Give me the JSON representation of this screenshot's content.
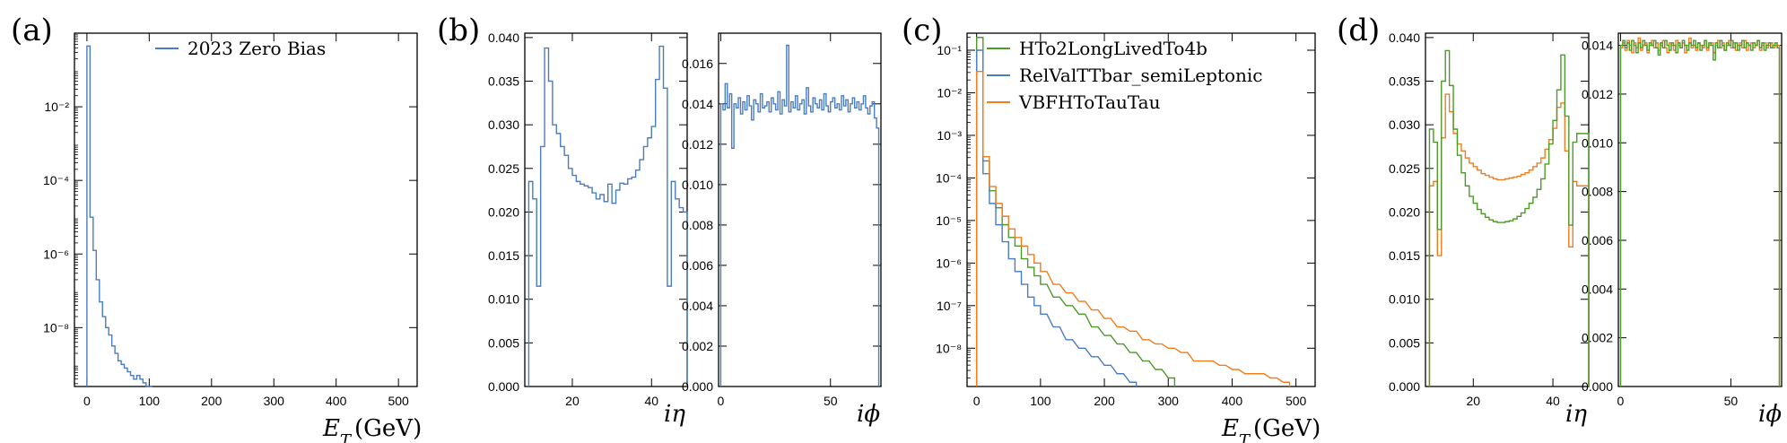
{
  "panel_labels": [
    "(a)",
    "(b)",
    "(c)",
    "(d)"
  ],
  "colors": {
    "blue": "#4a7cc0",
    "green": "#4c9a2a",
    "orange": "#f07d1e",
    "red": "#e8412b",
    "axis": "#000000"
  },
  "chart_data": [
    {
      "id": "a",
      "type": "line",
      "step": true,
      "xlabel": "E_T (GeV)",
      "xlim": [
        -20,
        530
      ],
      "xticks": [
        0,
        100,
        200,
        300,
        400,
        500
      ],
      "ylog": true,
      "ylim_log10": [
        -9.6,
        0
      ],
      "yticks": [
        {
          "v": -2,
          "t": "10⁻²"
        },
        {
          "v": -4,
          "t": "10⁻⁴"
        },
        {
          "v": -6,
          "t": "10⁻⁶"
        },
        {
          "v": -8,
          "t": "10⁻⁸"
        }
      ],
      "legend": [
        "2023 Zero Bias"
      ],
      "series": [
        {
          "name": "2023 Zero Bias",
          "color": "#4a7cc0",
          "x": [
            0,
            5,
            10,
            15,
            20,
            25,
            30,
            35,
            40,
            45,
            50,
            55,
            60,
            65,
            70,
            75,
            80,
            85,
            90,
            95,
            100
          ],
          "y_log10": [
            -0.35,
            -5.0,
            -5.9,
            -6.7,
            -7.3,
            -7.7,
            -8.0,
            -8.2,
            -8.5,
            -8.7,
            -8.9,
            -9.0,
            -9.1,
            -9.2,
            -9.3,
            -9.4,
            -9.3,
            -9.4,
            -9.5,
            -9.6,
            -9.6
          ]
        }
      ]
    },
    {
      "id": "b1",
      "type": "line",
      "step": true,
      "xlabel": "iη",
      "xlim": [
        8,
        49
      ],
      "xticks": [
        20,
        40
      ],
      "ylim": [
        0,
        0.0405
      ],
      "yticks": [
        0.0,
        0.005,
        0.01,
        0.015,
        0.02,
        0.025,
        0.03,
        0.035,
        0.04
      ],
      "ytick_format": 3,
      "series": [
        {
          "name": "",
          "color": "#4a7cc0",
          "x": [
            9,
            10,
            11,
            12,
            13,
            14,
            15,
            16,
            17,
            18,
            19,
            20,
            21,
            22,
            23,
            24,
            25,
            26,
            27,
            28,
            29,
            30,
            31,
            32,
            33,
            34,
            35,
            36,
            37,
            38,
            39,
            40,
            41,
            42,
            43,
            44,
            45,
            46,
            47,
            48
          ],
          "y": [
            0.0235,
            0.0215,
            0.0115,
            0.0275,
            0.0388,
            0.035,
            0.03,
            0.029,
            0.0275,
            0.0265,
            0.025,
            0.0242,
            0.0235,
            0.0232,
            0.023,
            0.0228,
            0.0222,
            0.0215,
            0.022,
            0.0212,
            0.0232,
            0.021,
            0.0225,
            0.0233,
            0.0232,
            0.0238,
            0.024,
            0.0248,
            0.026,
            0.0275,
            0.0285,
            0.0298,
            0.0352,
            0.039,
            0.0342,
            0.0115,
            0.0235,
            0.0215,
            0.0205,
            0.02
          ]
        }
      ]
    },
    {
      "id": "b2",
      "type": "line",
      "step": true,
      "xlabel": "iϕ",
      "xlim": [
        -1,
        73
      ],
      "xticks": [
        0,
        50
      ],
      "ylim": [
        0,
        0.0175
      ],
      "yticks": [
        0.0,
        0.002,
        0.004,
        0.006,
        0.008,
        0.01,
        0.012,
        0.014,
        0.016
      ],
      "ytick_format": 3,
      "series": [
        {
          "name": "",
          "color": "#4a7cc0",
          "y": [
            0.014,
            0.0137,
            0.015,
            0.0138,
            0.0145,
            0.0118,
            0.014,
            0.0138,
            0.0143,
            0.0135,
            0.0141,
            0.0137,
            0.0144,
            0.0139,
            0.0132,
            0.0142,
            0.014,
            0.0136,
            0.0145,
            0.0138,
            0.0139,
            0.0141,
            0.0136,
            0.0143,
            0.014,
            0.0137,
            0.0146,
            0.0135,
            0.0142,
            0.0139,
            0.0169,
            0.0136,
            0.0141,
            0.0138,
            0.0144,
            0.0137,
            0.014,
            0.0142,
            0.0135,
            0.0148,
            0.0139,
            0.0136,
            0.0143,
            0.014,
            0.0138,
            0.0142,
            0.0137,
            0.0145,
            0.0139,
            0.0136,
            0.0141,
            0.0143,
            0.0138,
            0.014,
            0.0137,
            0.0144,
            0.0139,
            0.0142,
            0.0136,
            0.014,
            0.0143,
            0.0138,
            0.0141,
            0.0137,
            0.014,
            0.0144,
            0.0138,
            0.0135,
            0.0139,
            0.0141,
            0.0133,
            0.0128
          ]
        }
      ]
    },
    {
      "id": "c",
      "type": "line",
      "step": true,
      "xlabel": "E_T (GeV)",
      "xlim": [
        -15,
        530
      ],
      "xticks": [
        0,
        100,
        200,
        300,
        400,
        500
      ],
      "ylog": true,
      "ylim_log10": [
        -8.9,
        -0.6
      ],
      "yticks": [
        {
          "v": -1,
          "t": "10⁻¹"
        },
        {
          "v": -2,
          "t": "10⁻²"
        },
        {
          "v": -3,
          "t": "10⁻³"
        },
        {
          "v": -4,
          "t": "10⁻⁴"
        },
        {
          "v": -5,
          "t": "10⁻⁵"
        },
        {
          "v": -6,
          "t": "10⁻⁶"
        },
        {
          "v": -7,
          "t": "10⁻⁷"
        },
        {
          "v": -8,
          "t": "10⁻⁸"
        }
      ],
      "legend": [
        "HTo2LongLivedTo4b",
        "RelValTTbar_semiLeptonic",
        "VBFHToTauTau"
      ],
      "series": [
        {
          "name": "HTo2LongLivedTo4b",
          "color": "#4c9a2a",
          "x": [
            0,
            10,
            20,
            30,
            40,
            50,
            60,
            70,
            80,
            90,
            100,
            120,
            140,
            160,
            180,
            200,
            220,
            240,
            260,
            280,
            300
          ],
          "y_log10": [
            -0.7,
            -3.6,
            -4.3,
            -4.7,
            -5.1,
            -5.4,
            -5.6,
            -5.9,
            -6.1,
            -6.3,
            -6.5,
            -6.8,
            -7.0,
            -7.2,
            -7.5,
            -7.7,
            -7.9,
            -8.1,
            -8.3,
            -8.5,
            -8.7
          ]
        },
        {
          "name": "RelValTTbar_semiLeptonic",
          "color": "#4a7cc0",
          "x": [
            0,
            10,
            20,
            30,
            40,
            50,
            60,
            70,
            80,
            90,
            100,
            120,
            140,
            160,
            180,
            200,
            220,
            240
          ],
          "y_log10": [
            -1.0,
            -3.9,
            -4.6,
            -5.1,
            -5.5,
            -5.9,
            -6.2,
            -6.5,
            -6.8,
            -7.0,
            -7.2,
            -7.5,
            -7.8,
            -8.0,
            -8.2,
            -8.4,
            -8.6,
            -8.8
          ]
        },
        {
          "name": "VBFHToTauTau",
          "color": "#f07d1e",
          "x": [
            0,
            10,
            20,
            30,
            40,
            50,
            60,
            70,
            80,
            90,
            100,
            120,
            140,
            160,
            180,
            200,
            220,
            240,
            260,
            280,
            300,
            320,
            340,
            360,
            380,
            400,
            420,
            440,
            460,
            480
          ],
          "y_log10": [
            -1.5,
            -3.5,
            -4.2,
            -4.6,
            -4.9,
            -5.2,
            -5.4,
            -5.6,
            -5.8,
            -6.0,
            -6.2,
            -6.5,
            -6.7,
            -6.9,
            -7.1,
            -7.3,
            -7.5,
            -7.6,
            -7.8,
            -7.9,
            -8.0,
            -8.1,
            -8.3,
            -8.3,
            -8.4,
            -8.5,
            -8.6,
            -8.6,
            -8.7,
            -8.8
          ]
        }
      ]
    },
    {
      "id": "d1",
      "type": "line",
      "step": true,
      "xlabel": "iη",
      "xlim": [
        8,
        49
      ],
      "xticks": [
        20,
        40
      ],
      "ylim": [
        0,
        0.0405
      ],
      "yticks": [
        0.0,
        0.005,
        0.01,
        0.015,
        0.02,
        0.025,
        0.03,
        0.035,
        0.04
      ],
      "ytick_format": 3,
      "series": [
        {
          "name": "",
          "color": "#f07d1e",
          "x": [
            9,
            10,
            11,
            12,
            13,
            14,
            15,
            16,
            17,
            18,
            19,
            20,
            21,
            22,
            23,
            24,
            25,
            26,
            27,
            28,
            29,
            30,
            31,
            32,
            33,
            34,
            35,
            36,
            37,
            38,
            39,
            40,
            41,
            42,
            43,
            44,
            45,
            46,
            47,
            48
          ],
          "y": [
            0.023,
            0.0235,
            0.015,
            0.0285,
            0.0335,
            0.0315,
            0.029,
            0.0278,
            0.027,
            0.0262,
            0.0256,
            0.0252,
            0.0248,
            0.0244,
            0.0242,
            0.024,
            0.0238,
            0.0237,
            0.0237,
            0.0238,
            0.0239,
            0.024,
            0.0241,
            0.0243,
            0.0245,
            0.0248,
            0.0252,
            0.0256,
            0.0262,
            0.0272,
            0.0283,
            0.0296,
            0.032,
            0.0325,
            0.027,
            0.016,
            0.0235,
            0.023,
            0.023,
            0.023
          ]
        },
        {
          "name": "",
          "color": "#4c9a2a",
          "x": [
            9,
            10,
            11,
            12,
            13,
            14,
            15,
            16,
            17,
            18,
            19,
            20,
            21,
            22,
            23,
            24,
            25,
            26,
            27,
            28,
            29,
            30,
            31,
            32,
            33,
            34,
            35,
            36,
            37,
            38,
            39,
            40,
            41,
            42,
            43,
            44,
            45,
            46,
            47,
            48
          ],
          "y": [
            0.0295,
            0.028,
            0.018,
            0.035,
            0.0385,
            0.0345,
            0.0295,
            0.0265,
            0.0245,
            0.023,
            0.0218,
            0.021,
            0.0203,
            0.0198,
            0.0194,
            0.0191,
            0.0189,
            0.0188,
            0.0188,
            0.0189,
            0.019,
            0.0192,
            0.0195,
            0.0199,
            0.0204,
            0.021,
            0.0217,
            0.0226,
            0.0238,
            0.0255,
            0.0278,
            0.0305,
            0.034,
            0.038,
            0.031,
            0.0185,
            0.028,
            0.029,
            0.029,
            0.029
          ]
        }
      ]
    },
    {
      "id": "d2",
      "type": "line",
      "step": true,
      "xlabel": "iϕ",
      "xlim": [
        -1,
        73
      ],
      "xticks": [
        0,
        50
      ],
      "ylim": [
        0,
        0.0145
      ],
      "yticks": [
        0.0,
        0.002,
        0.004,
        0.006,
        0.008,
        0.01,
        0.012,
        0.014
      ],
      "ytick_format": 3,
      "series": [
        {
          "name": "",
          "color": "#f07d1e",
          "y": [
            0.0139,
            0.0141,
            0.0138,
            0.0142,
            0.014,
            0.0137,
            0.0141,
            0.0139,
            0.0143,
            0.0138,
            0.014,
            0.0141,
            0.0137,
            0.014,
            0.0142,
            0.0139,
            0.0141,
            0.0138,
            0.014,
            0.0142,
            0.0139,
            0.0137,
            0.0141,
            0.014,
            0.0138,
            0.0142,
            0.014,
            0.0139,
            0.0141,
            0.0137,
            0.014,
            0.0143,
            0.0139,
            0.014,
            0.0138,
            0.0141,
            0.014,
            0.0139,
            0.0142,
            0.0138,
            0.014,
            0.0141,
            0.0137,
            0.014,
            0.0142,
            0.0139,
            0.0141,
            0.0138,
            0.014,
            0.0142,
            0.0139,
            0.0141,
            0.0138,
            0.014,
            0.0141,
            0.0139,
            0.0142,
            0.0138,
            0.014,
            0.0141,
            0.0139,
            0.014,
            0.0142,
            0.0138,
            0.014,
            0.0141,
            0.0139,
            0.014,
            0.0141,
            0.0139,
            0.014,
            0.014
          ]
        },
        {
          "name": "",
          "color": "#4c9a2a",
          "y": [
            0.014,
            0.0142,
            0.0139,
            0.0141,
            0.0138,
            0.0142,
            0.014,
            0.0137,
            0.0141,
            0.0139,
            0.0142,
            0.014,
            0.0138,
            0.0141,
            0.014,
            0.0142,
            0.0139,
            0.0136,
            0.0141,
            0.0139,
            0.0142,
            0.014,
            0.0138,
            0.0141,
            0.014,
            0.0137,
            0.0141,
            0.0139,
            0.0142,
            0.014,
            0.0138,
            0.0141,
            0.014,
            0.0142,
            0.0139,
            0.0141,
            0.0138,
            0.014,
            0.0142,
            0.0139,
            0.0141,
            0.014,
            0.0134,
            0.0141,
            0.0139,
            0.0142,
            0.014,
            0.0138,
            0.0141,
            0.014,
            0.0142,
            0.0139,
            0.0141,
            0.0138,
            0.014,
            0.0142,
            0.0139,
            0.0141,
            0.014,
            0.0138,
            0.0141,
            0.014,
            0.0142,
            0.0139,
            0.0141,
            0.0138,
            0.014,
            0.0141,
            0.0139,
            0.014,
            0.0141,
            0.0139
          ]
        }
      ]
    }
  ]
}
